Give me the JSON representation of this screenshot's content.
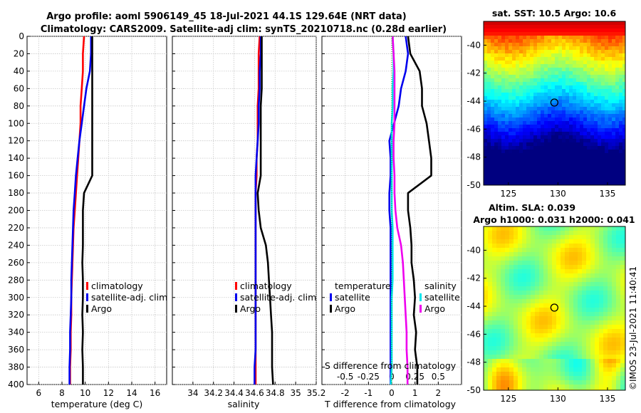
{
  "header": {
    "title_line1": "Argo profile: aoml 5906149_45 18-Jul-2021 44.1S 129.64E (NRT data)",
    "title_line2": "Climatology: CARS2009. Satellite-adj clim: synTS_20210718.nc (0.28d earlier)"
  },
  "stamp": "©IMOS 23-Jul-2021 11:40:41",
  "colors": {
    "climatology": "#ff0000",
    "satellite": "#0000ee",
    "argo": "#000000",
    "sal_satellite": "#00e5ee",
    "sal_argo": "#ee00ee"
  },
  "chart_data": [
    {
      "id": "temperature",
      "type": "line",
      "xlabel": "temperature (deg C)",
      "ylabel": "",
      "xlim": [
        5,
        17
      ],
      "xticks": [
        "6",
        "8",
        "10",
        "12",
        "14",
        "16"
      ],
      "xtick_values": [
        6,
        8,
        10,
        12,
        14,
        16
      ],
      "ylim": [
        400,
        0
      ],
      "yticks": [
        "0",
        "20",
        "40",
        "60",
        "80",
        "100",
        "120",
        "140",
        "160",
        "180",
        "200",
        "220",
        "240",
        "260",
        "280",
        "300",
        "320",
        "340",
        "360",
        "380",
        "400"
      ],
      "ytick_values": [
        0,
        20,
        40,
        60,
        80,
        100,
        120,
        140,
        160,
        180,
        200,
        220,
        240,
        260,
        280,
        300,
        320,
        340,
        360,
        380,
        400
      ],
      "grid": true,
      "legend": {
        "position": "lower-right",
        "entries": [
          "climatology",
          "satellite-adj. clim",
          "Argo"
        ]
      },
      "series": [
        {
          "name": "climatology",
          "color": "#ff0000",
          "x": [
            9.9,
            9.8,
            9.8,
            9.7,
            9.6,
            9.6,
            9.5,
            9.4,
            9.3,
            9.2,
            9.1,
            9.0,
            8.95,
            8.9,
            8.85,
            8.8,
            8.8,
            8.75,
            8.75,
            8.7,
            8.7
          ],
          "y": [
            0,
            20,
            40,
            60,
            80,
            100,
            120,
            140,
            160,
            180,
            200,
            220,
            240,
            260,
            280,
            300,
            320,
            340,
            360,
            380,
            400
          ]
        },
        {
          "name": "satellite-adj. clim",
          "color": "#0000ee",
          "x": [
            10.5,
            10.5,
            10.4,
            10.1,
            9.9,
            9.7,
            9.5,
            9.35,
            9.2,
            9.1,
            9.0,
            8.95,
            8.9,
            8.85,
            8.8,
            8.8,
            8.75,
            8.7,
            8.7,
            8.65,
            8.65
          ],
          "y": [
            0,
            20,
            40,
            60,
            80,
            100,
            120,
            140,
            160,
            180,
            200,
            220,
            240,
            260,
            280,
            300,
            320,
            340,
            360,
            380,
            400
          ]
        },
        {
          "name": "Argo",
          "color": "#000000",
          "x": [
            10.6,
            10.6,
            10.6,
            10.6,
            10.6,
            10.6,
            10.6,
            10.6,
            10.6,
            9.9,
            9.8,
            9.8,
            9.8,
            9.75,
            9.8,
            9.8,
            9.75,
            9.8,
            9.75,
            9.8,
            9.8
          ],
          "y": [
            0,
            20,
            40,
            60,
            80,
            100,
            120,
            140,
            160,
            180,
            200,
            220,
            240,
            260,
            280,
            300,
            320,
            340,
            360,
            380,
            400
          ]
        }
      ]
    },
    {
      "id": "salinity",
      "type": "line",
      "xlabel": "salinity",
      "xlim": [
        33.8,
        35.2
      ],
      "xticks": [
        "34",
        "34.2",
        "34.4",
        "34.6",
        "34.8",
        "35",
        "35.2"
      ],
      "xtick_values": [
        34,
        34.2,
        34.4,
        34.6,
        34.8,
        35,
        35.2
      ],
      "ylim": [
        400,
        0
      ],
      "grid": true,
      "legend": {
        "position": "lower-right",
        "entries": [
          "climatology",
          "satellite-adj. clim",
          "Argo"
        ]
      },
      "series": [
        {
          "name": "climatology",
          "color": "#ff0000",
          "x": [
            34.65,
            34.64,
            34.64,
            34.64,
            34.63,
            34.63,
            34.63,
            34.62,
            34.62,
            34.61,
            34.61,
            34.61,
            34.61,
            34.61,
            34.61,
            34.61,
            34.61,
            34.61,
            34.61,
            34.61,
            34.61
          ],
          "y": [
            0,
            20,
            40,
            60,
            80,
            100,
            120,
            140,
            160,
            180,
            200,
            220,
            240,
            260,
            280,
            300,
            320,
            340,
            360,
            380,
            400
          ]
        },
        {
          "name": "satellite-adj. clim",
          "color": "#0000ee",
          "x": [
            34.66,
            34.66,
            34.65,
            34.65,
            34.64,
            34.64,
            34.63,
            34.62,
            34.61,
            34.61,
            34.61,
            34.61,
            34.61,
            34.61,
            34.61,
            34.61,
            34.61,
            34.61,
            34.61,
            34.6,
            34.6
          ],
          "y": [
            0,
            20,
            40,
            60,
            80,
            100,
            120,
            140,
            160,
            180,
            200,
            220,
            240,
            260,
            280,
            300,
            320,
            340,
            360,
            380,
            400
          ]
        },
        {
          "name": "Argo",
          "color": "#000000",
          "x": [
            34.67,
            34.67,
            34.67,
            34.67,
            34.66,
            34.66,
            34.66,
            34.66,
            34.66,
            34.63,
            34.64,
            34.66,
            34.71,
            34.73,
            34.74,
            34.75,
            34.76,
            34.77,
            34.77,
            34.77,
            34.78
          ],
          "y": [
            0,
            20,
            40,
            60,
            80,
            100,
            120,
            140,
            160,
            180,
            200,
            220,
            240,
            260,
            280,
            300,
            320,
            340,
            360,
            380,
            400
          ]
        }
      ]
    },
    {
      "id": "differences",
      "type": "line",
      "xlabel": "T difference from climatology",
      "xlabel_top": "S difference from climatology",
      "xlim": [
        -3,
        3
      ],
      "xticks": [
        "-2",
        "-1",
        "0",
        "1",
        "2"
      ],
      "xtick_values": [
        -2,
        -1,
        0,
        1,
        2
      ],
      "sxlim": [
        -0.75,
        0.75
      ],
      "sxticks": [
        "-0.5",
        "-0.25",
        "0",
        "0.25",
        "0.5"
      ],
      "sxtick_values": [
        -0.5,
        -0.25,
        0,
        0.25,
        0.5
      ],
      "ylim": [
        400,
        0
      ],
      "grid": true,
      "legend": {
        "position": "lower",
        "groups": [
          {
            "title": "temperature",
            "entries": [
              "satellite",
              "Argo"
            ]
          },
          {
            "title": "salinity",
            "entries": [
              "satellite",
              "Argo"
            ]
          }
        ]
      },
      "series": [
        {
          "name": "T satellite",
          "color": "#0000ee",
          "x": [
            0.6,
            0.7,
            0.6,
            0.4,
            0.3,
            0.1,
            -0.1,
            -0.05,
            -0.05,
            -0.1,
            -0.1,
            -0.05,
            -0.05,
            -0.05,
            -0.05,
            -0.05,
            -0.05,
            -0.05,
            -0.05,
            -0.05,
            -0.05
          ],
          "y": [
            0,
            20,
            40,
            60,
            80,
            100,
            120,
            140,
            160,
            180,
            200,
            220,
            240,
            260,
            280,
            300,
            320,
            340,
            360,
            380,
            400
          ]
        },
        {
          "name": "T Argo",
          "color": "#000000",
          "x": [
            0.7,
            0.8,
            1.2,
            1.3,
            1.3,
            1.5,
            1.6,
            1.7,
            1.7,
            0.7,
            0.7,
            0.8,
            0.85,
            0.85,
            0.95,
            1.0,
            0.95,
            1.05,
            1.0,
            1.1,
            1.1
          ],
          "y": [
            0,
            20,
            40,
            60,
            80,
            100,
            120,
            140,
            160,
            180,
            200,
            220,
            240,
            260,
            280,
            300,
            320,
            340,
            360,
            380,
            400
          ]
        },
        {
          "name": "S satellite",
          "color": "#00e5ee",
          "x": [
            0.01,
            0.02,
            0.02,
            0.01,
            0.01,
            0.0,
            0.0,
            0.0,
            0.0,
            0.0,
            0.0,
            0.01,
            0.01,
            0.01,
            0.01,
            0.0,
            0.0,
            0.0,
            0.0,
            0.0,
            -0.01
          ],
          "y": [
            0,
            20,
            40,
            60,
            80,
            100,
            120,
            140,
            160,
            180,
            200,
            220,
            240,
            260,
            280,
            300,
            320,
            340,
            360,
            380,
            400
          ]
        },
        {
          "name": "S Argo",
          "color": "#ee00ee",
          "x": [
            0.01,
            0.02,
            0.03,
            0.03,
            0.03,
            0.03,
            0.02,
            0.02,
            0.03,
            0.03,
            0.04,
            0.06,
            0.1,
            0.12,
            0.13,
            0.14,
            0.15,
            0.16,
            0.16,
            0.17,
            0.17
          ],
          "y": [
            0,
            20,
            40,
            60,
            80,
            100,
            120,
            140,
            160,
            180,
            200,
            220,
            240,
            260,
            280,
            300,
            320,
            340,
            360,
            380,
            400
          ]
        }
      ]
    },
    {
      "id": "sst_map",
      "type": "heatmap",
      "title": "sat. SST: 10.5 Argo: 10.6",
      "xticks": [
        "125",
        "130",
        "135"
      ],
      "xtick_values": [
        125,
        130,
        135
      ],
      "yticks": [
        "-40",
        "-42",
        "-44",
        "-46",
        "-48",
        "-50"
      ],
      "ytick_values": [
        -40,
        -42,
        -44,
        -46,
        -48,
        -50
      ],
      "xlim": [
        122.5,
        136.8
      ],
      "ylim": [
        -50,
        -38.3
      ],
      "argo_position": [
        129.64,
        -44.1
      ]
    },
    {
      "id": "sla_map",
      "type": "heatmap",
      "title_line1": "Altim. SLA: 0.039",
      "title_line2": "Argo h1000: 0.031 h2000: 0.041",
      "xticks": [
        "125",
        "130",
        "135"
      ],
      "xtick_values": [
        125,
        130,
        135
      ],
      "yticks": [
        "-40",
        "-42",
        "-44",
        "-46",
        "-48",
        "-50"
      ],
      "ytick_values": [
        -40,
        -42,
        -44,
        -46,
        -48,
        -50
      ],
      "xlim": [
        122.5,
        136.8
      ],
      "ylim": [
        -50,
        -38.3
      ],
      "argo_position": [
        129.64,
        -44.1
      ]
    }
  ]
}
